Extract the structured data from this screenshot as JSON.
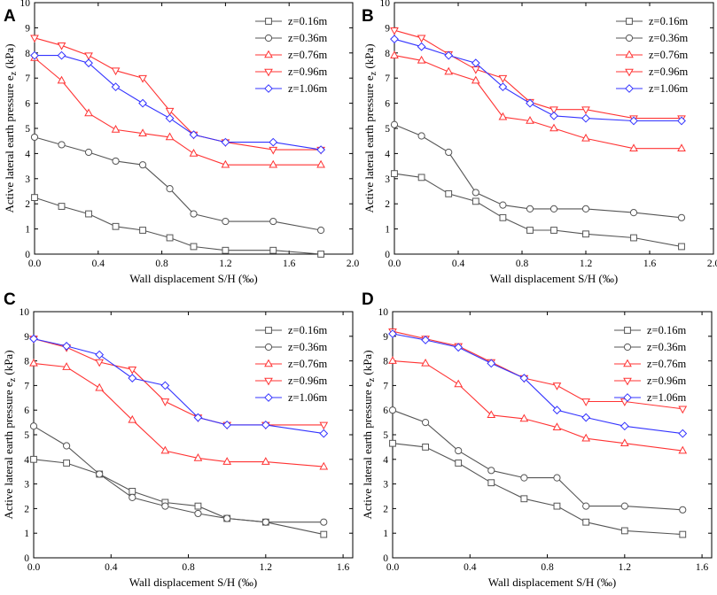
{
  "chart_data": [
    {
      "type": "line",
      "panel": "A",
      "xlabel": "Wall displacement S/H (‰)",
      "ylabel": "Active lateral earth pressure e",
      "ylabel_sub": "z",
      "ylabel_unit": " (kPa)",
      "xlim": [
        0,
        2.0
      ],
      "ylim": [
        0,
        10
      ],
      "xticks": [
        "0.0",
        "0.4",
        "0.8",
        "1.2",
        "1.6",
        "2.0"
      ],
      "yticks": [
        "0",
        "1",
        "2",
        "3",
        "4",
        "5",
        "6",
        "7",
        "8",
        "9",
        "10"
      ],
      "legend_position": "top-right",
      "series": [
        {
          "name": "z=0.16m",
          "color": "#555555",
          "marker": "square",
          "x": [
            0,
            0.17,
            0.34,
            0.51,
            0.68,
            0.85,
            1.0,
            1.2,
            1.5,
            1.8
          ],
          "y": [
            2.25,
            1.9,
            1.6,
            1.1,
            0.95,
            0.65,
            0.3,
            0.15,
            0.15,
            0.0
          ]
        },
        {
          "name": "z=0.36m",
          "color": "#555555",
          "marker": "circle",
          "x": [
            0,
            0.17,
            0.34,
            0.51,
            0.68,
            0.85,
            1.0,
            1.2,
            1.5,
            1.8
          ],
          "y": [
            4.65,
            4.35,
            4.05,
            3.7,
            3.55,
            2.6,
            1.6,
            1.3,
            1.3,
            0.95
          ]
        },
        {
          "name": "z=0.76m",
          "color": "#ff3333",
          "marker": "triangle-up",
          "x": [
            0,
            0.17,
            0.34,
            0.51,
            0.68,
            0.85,
            1.0,
            1.2,
            1.5,
            1.8
          ],
          "y": [
            7.8,
            6.9,
            5.6,
            4.95,
            4.8,
            4.65,
            4.0,
            3.55,
            3.55,
            3.55
          ]
        },
        {
          "name": "z=0.96m",
          "color": "#ff3333",
          "marker": "triangle-down",
          "x": [
            0,
            0.17,
            0.34,
            0.51,
            0.68,
            0.85,
            1.0,
            1.2,
            1.5,
            1.8
          ],
          "y": [
            8.6,
            8.3,
            7.9,
            7.3,
            7.0,
            5.7,
            4.75,
            4.45,
            4.15,
            4.15
          ]
        },
        {
          "name": "z=1.06m",
          "color": "#3333ff",
          "marker": "diamond",
          "x": [
            0,
            0.17,
            0.34,
            0.51,
            0.68,
            0.85,
            1.0,
            1.2,
            1.5,
            1.8
          ],
          "y": [
            7.9,
            7.9,
            7.6,
            6.65,
            6.0,
            5.4,
            4.75,
            4.45,
            4.45,
            4.15
          ]
        }
      ]
    },
    {
      "type": "line",
      "panel": "B",
      "xlabel": "Wall displacement S/H (‰)",
      "ylabel": "Active lateral earth pressure e",
      "ylabel_sub": "z",
      "ylabel_unit": " (kPa)",
      "xlim": [
        0,
        2.0
      ],
      "ylim": [
        0,
        10
      ],
      "xticks": [
        "0.0",
        "0.4",
        "0.8",
        "1.2",
        "1.6",
        "2.0"
      ],
      "yticks": [
        "0",
        "1",
        "2",
        "3",
        "4",
        "5",
        "6",
        "7",
        "8",
        "9",
        "10"
      ],
      "legend_position": "top-right",
      "series": [
        {
          "name": "z=0.16m",
          "color": "#555555",
          "marker": "square",
          "x": [
            0,
            0.17,
            0.34,
            0.51,
            0.68,
            0.85,
            1.0,
            1.2,
            1.5,
            1.8
          ],
          "y": [
            3.2,
            3.05,
            2.4,
            2.1,
            1.45,
            0.95,
            0.95,
            0.8,
            0.65,
            0.3
          ]
        },
        {
          "name": "z=0.36m",
          "color": "#555555",
          "marker": "circle",
          "x": [
            0,
            0.17,
            0.34,
            0.51,
            0.68,
            0.85,
            1.0,
            1.2,
            1.5,
            1.8
          ],
          "y": [
            5.15,
            4.7,
            4.05,
            2.45,
            1.95,
            1.8,
            1.8,
            1.8,
            1.65,
            1.45
          ]
        },
        {
          "name": "z=0.76m",
          "color": "#ff3333",
          "marker": "triangle-up",
          "x": [
            0,
            0.17,
            0.34,
            0.51,
            0.68,
            0.85,
            1.0,
            1.2,
            1.5,
            1.8
          ],
          "y": [
            7.9,
            7.7,
            7.25,
            6.9,
            5.45,
            5.3,
            5.0,
            4.6,
            4.2,
            4.2
          ]
        },
        {
          "name": "z=0.96m",
          "color": "#ff3333",
          "marker": "triangle-down",
          "x": [
            0,
            0.17,
            0.34,
            0.51,
            0.68,
            0.85,
            1.0,
            1.2,
            1.5,
            1.8
          ],
          "y": [
            8.9,
            8.6,
            7.95,
            7.35,
            7.0,
            6.05,
            5.75,
            5.75,
            5.4,
            5.4
          ]
        },
        {
          "name": "z=1.06m",
          "color": "#3333ff",
          "marker": "diamond",
          "x": [
            0,
            0.17,
            0.34,
            0.51,
            0.68,
            0.85,
            1.0,
            1.2,
            1.5,
            1.8
          ],
          "y": [
            8.55,
            8.25,
            7.9,
            7.6,
            6.65,
            6.0,
            5.5,
            5.4,
            5.3,
            5.3
          ]
        }
      ]
    },
    {
      "type": "line",
      "panel": "C",
      "xlabel": "Wall displacement S/H (‰)",
      "ylabel": "Active lateral earth pressure e",
      "ylabel_sub": "z",
      "ylabel_unit": " (kPa)",
      "xlim": [
        0,
        1.65
      ],
      "ylim": [
        0,
        10
      ],
      "xticks": [
        "0.0",
        "0.4",
        "0.8",
        "1.2",
        "1.6"
      ],
      "yticks": [
        "0",
        "1",
        "2",
        "3",
        "4",
        "5",
        "6",
        "7",
        "8",
        "9",
        "10"
      ],
      "legend_position": "top-right",
      "series": [
        {
          "name": "z=0.16m",
          "color": "#555555",
          "marker": "square",
          "x": [
            0,
            0.17,
            0.34,
            0.51,
            0.68,
            0.85,
            1.0,
            1.2,
            1.5
          ],
          "y": [
            4.0,
            3.85,
            3.4,
            2.7,
            2.25,
            2.1,
            1.6,
            1.45,
            0.95
          ]
        },
        {
          "name": "z=0.36m",
          "color": "#555555",
          "marker": "circle",
          "x": [
            0,
            0.17,
            0.34,
            0.51,
            0.68,
            0.85,
            1.0,
            1.2,
            1.5
          ],
          "y": [
            5.35,
            4.55,
            3.4,
            2.45,
            2.1,
            1.8,
            1.6,
            1.45,
            1.45
          ]
        },
        {
          "name": "z=0.76m",
          "color": "#ff3333",
          "marker": "triangle-up",
          "x": [
            0,
            0.17,
            0.34,
            0.51,
            0.68,
            0.85,
            1.0,
            1.2,
            1.5
          ],
          "y": [
            7.9,
            7.75,
            6.9,
            5.6,
            4.35,
            4.05,
            3.9,
            3.9,
            3.7
          ]
        },
        {
          "name": "z=0.96m",
          "color": "#ff3333",
          "marker": "triangle-down",
          "x": [
            0,
            0.17,
            0.34,
            0.51,
            0.68,
            0.85,
            1.0,
            1.2,
            1.5
          ],
          "y": [
            8.9,
            8.55,
            7.95,
            7.65,
            6.35,
            5.7,
            5.4,
            5.4,
            5.4
          ]
        },
        {
          "name": "z=1.06m",
          "color": "#3333ff",
          "marker": "diamond",
          "x": [
            0,
            0.17,
            0.34,
            0.51,
            0.68,
            0.85,
            1.0,
            1.2,
            1.5
          ],
          "y": [
            8.9,
            8.6,
            8.25,
            7.3,
            7.0,
            5.7,
            5.4,
            5.4,
            5.05
          ]
        }
      ]
    },
    {
      "type": "line",
      "panel": "D",
      "xlabel": "Wall displacement S/H (‰)",
      "ylabel": "Active lateral earth pressure e",
      "ylabel_sub": "z",
      "ylabel_unit": " (kPa)",
      "xlim": [
        0,
        1.65
      ],
      "ylim": [
        0,
        10
      ],
      "xticks": [
        "0.0",
        "0.4",
        "0.8",
        "1.2",
        "1.6"
      ],
      "yticks": [
        "0",
        "1",
        "2",
        "3",
        "4",
        "5",
        "6",
        "7",
        "8",
        "9",
        "10"
      ],
      "legend_position": "top-right",
      "series": [
        {
          "name": "z=0.16m",
          "color": "#555555",
          "marker": "square",
          "x": [
            0,
            0.17,
            0.34,
            0.51,
            0.68,
            0.85,
            1.0,
            1.2,
            1.5
          ],
          "y": [
            4.65,
            4.5,
            3.85,
            3.05,
            2.4,
            2.1,
            1.45,
            1.1,
            0.95
          ]
        },
        {
          "name": "z=0.36m",
          "color": "#555555",
          "marker": "circle",
          "x": [
            0,
            0.17,
            0.34,
            0.51,
            0.68,
            0.85,
            1.0,
            1.2,
            1.5
          ],
          "y": [
            6.0,
            5.5,
            4.35,
            3.55,
            3.25,
            3.25,
            2.1,
            2.1,
            1.95
          ]
        },
        {
          "name": "z=0.76m",
          "color": "#ff3333",
          "marker": "triangle-up",
          "x": [
            0,
            0.17,
            0.34,
            0.51,
            0.68,
            0.85,
            1.0,
            1.2,
            1.5
          ],
          "y": [
            8.0,
            7.9,
            7.05,
            5.8,
            5.65,
            5.3,
            4.85,
            4.65,
            4.35
          ]
        },
        {
          "name": "z=0.96m",
          "color": "#ff3333",
          "marker": "triangle-down",
          "x": [
            0,
            0.17,
            0.34,
            0.51,
            0.68,
            0.85,
            1.0,
            1.2,
            1.5
          ],
          "y": [
            9.2,
            8.9,
            8.6,
            7.95,
            7.3,
            7.0,
            6.35,
            6.35,
            6.05
          ]
        },
        {
          "name": "z=1.06m",
          "color": "#3333ff",
          "marker": "diamond",
          "x": [
            0,
            0.17,
            0.34,
            0.51,
            0.68,
            0.85,
            1.0,
            1.2,
            1.5
          ],
          "y": [
            9.1,
            8.85,
            8.55,
            7.9,
            7.3,
            6.0,
            5.7,
            5.35,
            5.05
          ]
        }
      ]
    }
  ]
}
